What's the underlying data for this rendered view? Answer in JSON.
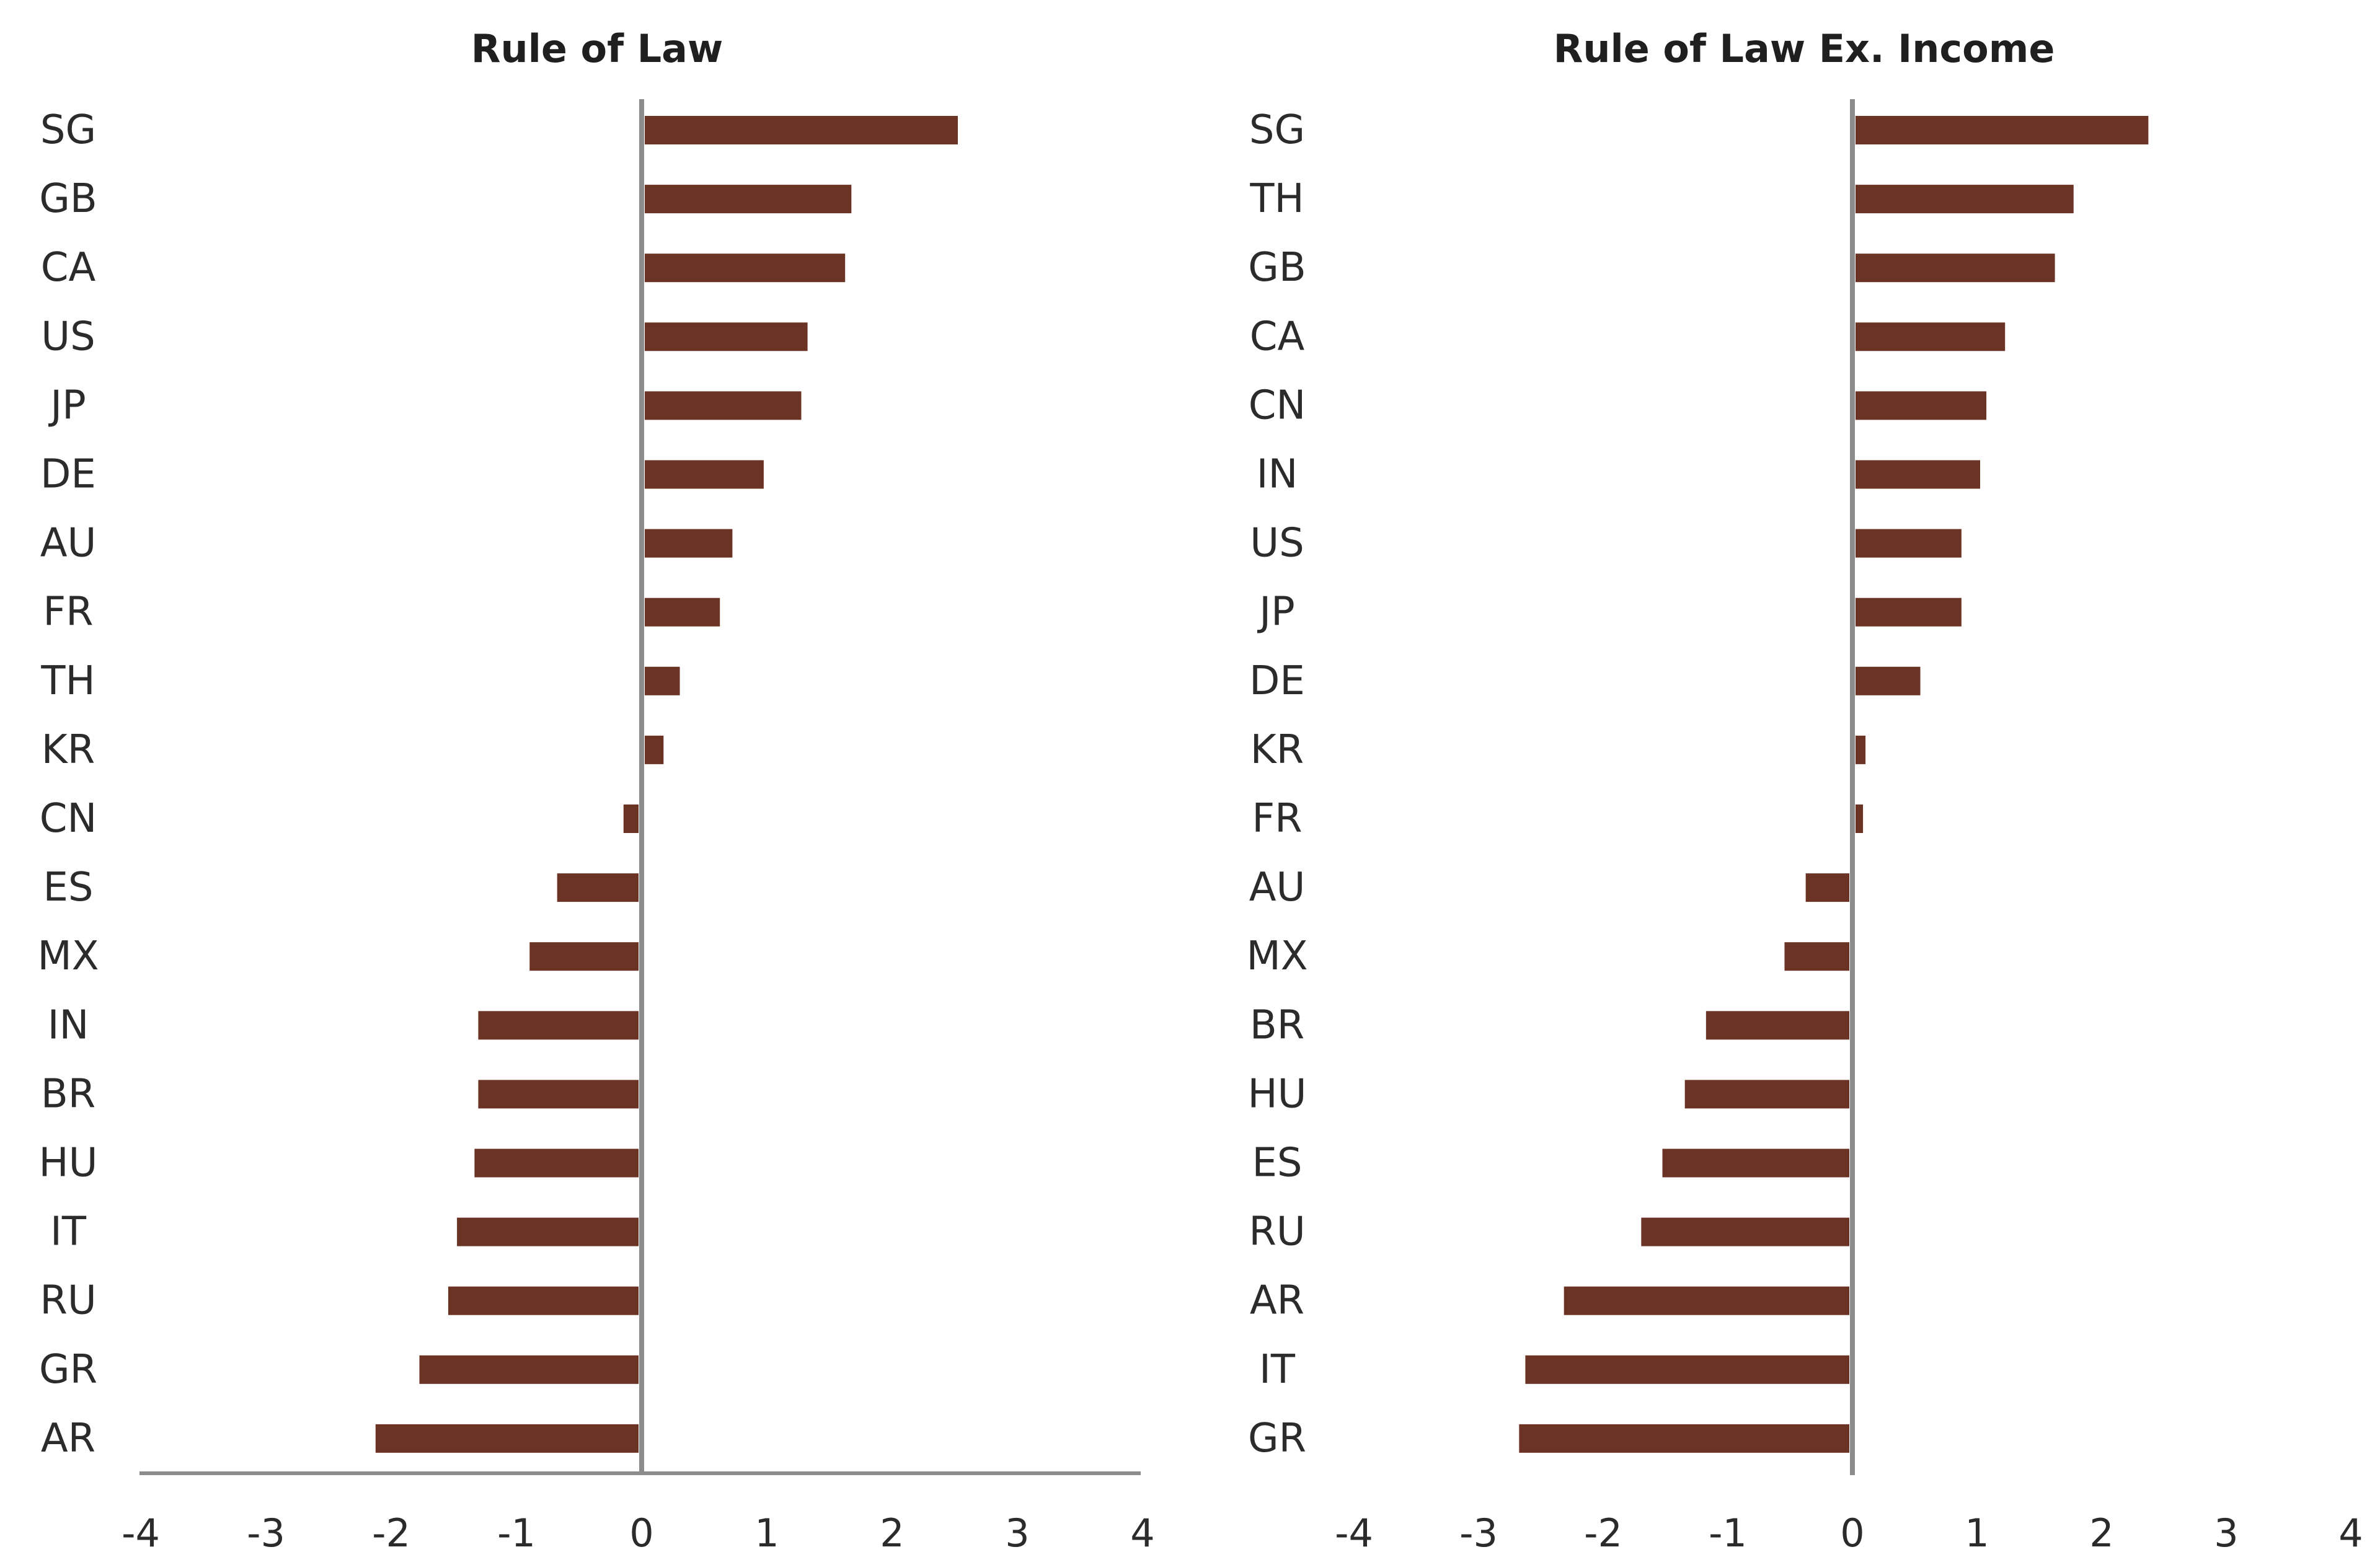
{
  "colors": {
    "bar": "#6b3324",
    "axis": "#8c8c8c",
    "text": "#2b2b2b"
  },
  "chart_data": [
    {
      "type": "bar",
      "orientation": "horizontal",
      "title": "Rule of Law",
      "categories": [
        "SG",
        "GB",
        "CA",
        "US",
        "JP",
        "DE",
        "AU",
        "FR",
        "TH",
        "KR",
        "CN",
        "ES",
        "MX",
        "IN",
        "BR",
        "HU",
        "IT",
        "RU",
        "GR",
        "AR"
      ],
      "values": [
        2.5,
        1.65,
        1.6,
        1.3,
        1.25,
        0.95,
        0.7,
        0.6,
        0.28,
        0.15,
        -0.12,
        -0.65,
        -0.87,
        -1.28,
        -1.28,
        -1.31,
        -1.45,
        -1.52,
        -1.75,
        -2.1
      ],
      "xlim": [
        -4,
        4
      ],
      "xticks": [
        "-4",
        "-3",
        "-2",
        "-1",
        "0",
        "1",
        "2",
        "3",
        "4"
      ],
      "xlabel": "",
      "ylabel": "",
      "grid": false
    },
    {
      "type": "bar",
      "orientation": "horizontal",
      "title": "Rule of Law Ex. Income",
      "categories": [
        "SG",
        "TH",
        "GB",
        "CA",
        "CN",
        "IN",
        "US",
        "JP",
        "DE",
        "KR",
        "FR",
        "AU",
        "MX",
        "BR",
        "HU",
        "ES",
        "RU",
        "AR",
        "IT",
        "GR"
      ],
      "values": [
        2.35,
        1.75,
        1.6,
        1.2,
        1.05,
        1.0,
        0.85,
        0.85,
        0.52,
        0.08,
        0.06,
        -0.35,
        -0.52,
        -1.15,
        -1.32,
        -1.5,
        -1.67,
        -2.29,
        -2.6,
        -2.65
      ],
      "xlim": [
        -4,
        4
      ],
      "xticks": [
        "-4",
        "-3",
        "-2",
        "-1",
        "0",
        "1",
        "2",
        "3",
        "4"
      ],
      "xlabel": "",
      "ylabel": "",
      "grid": false
    }
  ]
}
